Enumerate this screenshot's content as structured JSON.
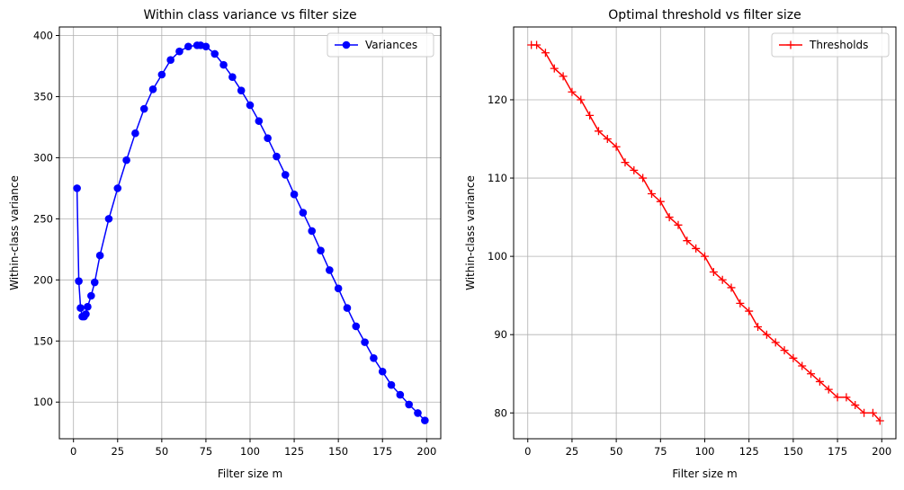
{
  "chart_data": [
    {
      "type": "line",
      "title": "Within class variance vs filter size",
      "xlabel": "Filter size m",
      "ylabel": "Within-class variance",
      "xlim": [
        -8,
        208
      ],
      "ylim": [
        70,
        407
      ],
      "x_ticks": [
        0,
        25,
        50,
        75,
        100,
        125,
        150,
        175,
        200
      ],
      "y_ticks": [
        100,
        150,
        200,
        250,
        300,
        350,
        400
      ],
      "grid": true,
      "legend": "top-right",
      "series": [
        {
          "name": "Variances",
          "color": "#0000ff",
          "marker": "circle",
          "x": [
            2,
            3,
            4,
            5,
            6,
            7,
            8,
            10,
            12,
            15,
            20,
            25,
            30,
            35,
            40,
            45,
            50,
            55,
            60,
            65,
            70,
            72,
            75,
            80,
            85,
            90,
            95,
            100,
            105,
            110,
            115,
            120,
            125,
            130,
            135,
            140,
            145,
            150,
            155,
            160,
            165,
            170,
            175,
            180,
            185,
            190,
            195,
            199
          ],
          "y": [
            275,
            199,
            177,
            170,
            170,
            172,
            178,
            187,
            198,
            220,
            250,
            275,
            298,
            320,
            340,
            356,
            368,
            380,
            387,
            391,
            392,
            392,
            391,
            385,
            376,
            366,
            355,
            343,
            330,
            316,
            301,
            286,
            270,
            255,
            240,
            224,
            208,
            193,
            177,
            162,
            149,
            136,
            125,
            114,
            106,
            98,
            91,
            85
          ]
        }
      ]
    },
    {
      "type": "line",
      "title": "Optimal threshold vs filter size",
      "xlabel": "Filter size m",
      "ylabel": "Within-class variance",
      "xlim": [
        -8,
        208
      ],
      "ylim": [
        76.7,
        129.3
      ],
      "x_ticks": [
        0,
        25,
        50,
        75,
        100,
        125,
        150,
        175,
        200
      ],
      "y_ticks": [
        80,
        90,
        100,
        110,
        120
      ],
      "grid": true,
      "legend": "top-right",
      "series": [
        {
          "name": "Thresholds",
          "color": "#ff0000",
          "marker": "plus",
          "x": [
            2,
            5,
            10,
            15,
            20,
            25,
            30,
            35,
            40,
            45,
            50,
            55,
            60,
            65,
            70,
            75,
            80,
            85,
            90,
            95,
            100,
            105,
            110,
            115,
            120,
            125,
            130,
            135,
            140,
            145,
            150,
            155,
            160,
            165,
            170,
            175,
            180,
            185,
            190,
            195,
            199
          ],
          "y": [
            127,
            127,
            126,
            124,
            123,
            121,
            120,
            118,
            116,
            115,
            114,
            112,
            111,
            110,
            108,
            107,
            105,
            104,
            102,
            101,
            100,
            98,
            97,
            96,
            94,
            93,
            91,
            90,
            89,
            88,
            87,
            86,
            85,
            84,
            83,
            82,
            82,
            81,
            80,
            80,
            79
          ]
        }
      ]
    }
  ]
}
